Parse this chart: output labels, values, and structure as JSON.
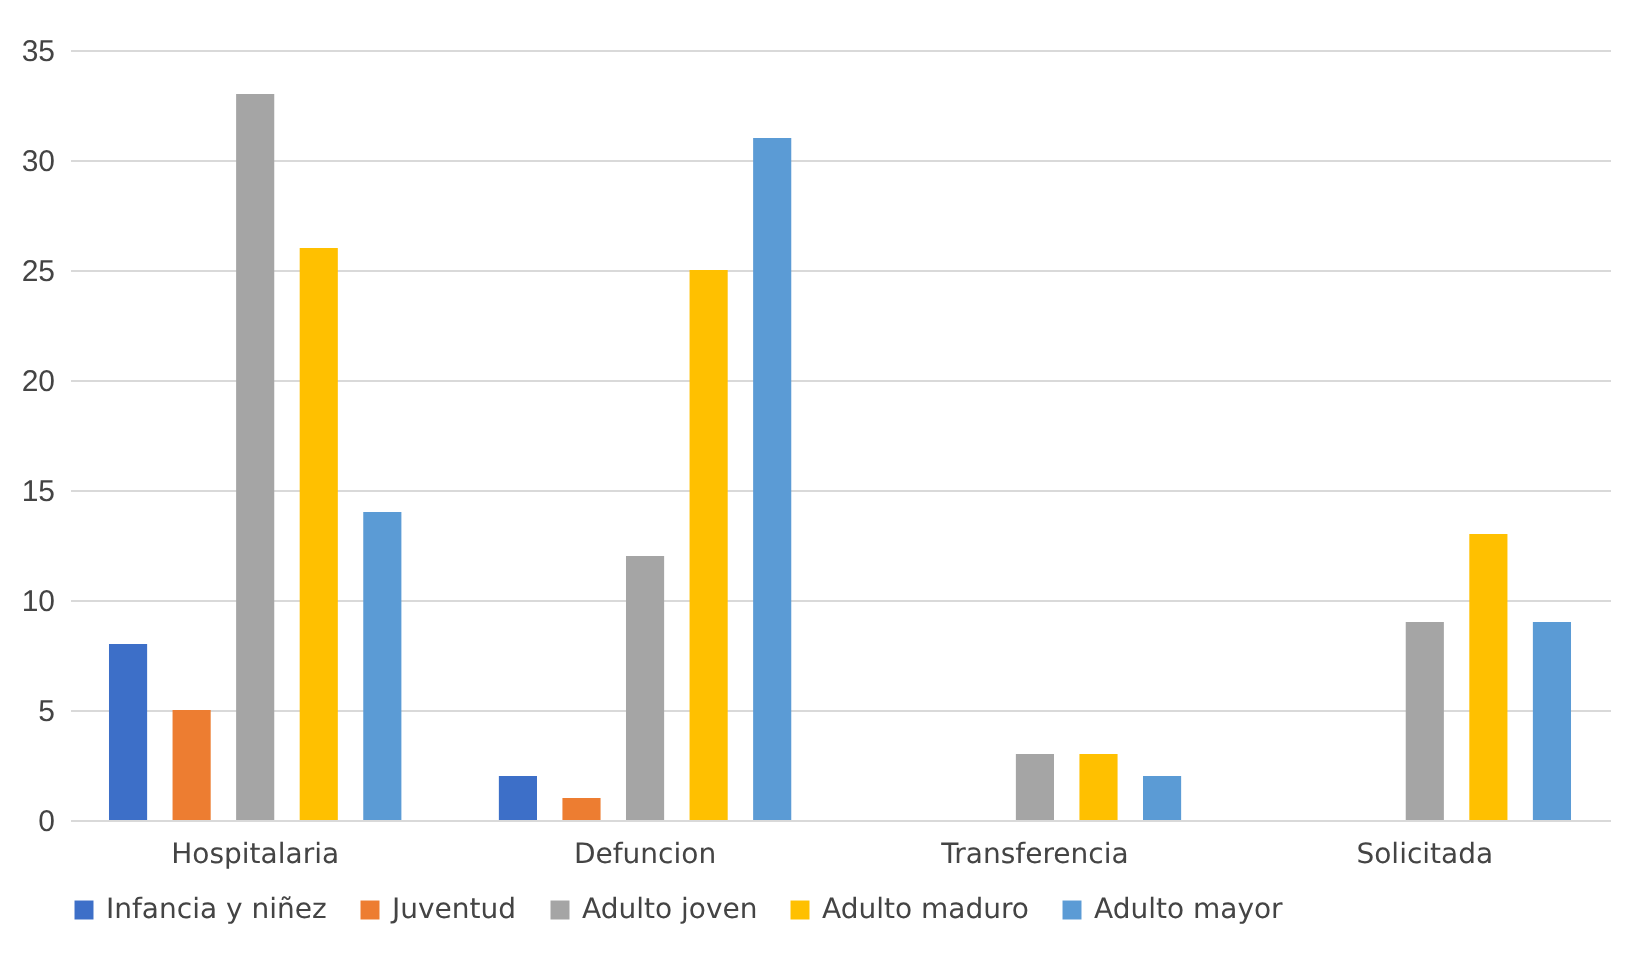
{
  "chart_data": {
    "type": "bar",
    "categories": [
      "Hospitalaria",
      "Defuncion",
      "Transferencia",
      "Solicitada"
    ],
    "series": [
      {
        "name": "Infancia y niñez",
        "color": "#3d6fc8",
        "values": [
          8,
          2,
          0,
          0
        ]
      },
      {
        "name": "Juventud",
        "color": "#ed7d31",
        "values": [
          5,
          1,
          0,
          0
        ]
      },
      {
        "name": "Adulto joven",
        "color": "#a5a5a5",
        "values": [
          33,
          12,
          3,
          9
        ]
      },
      {
        "name": "Adulto maduro",
        "color": "#ffc000",
        "values": [
          26,
          25,
          3,
          13
        ]
      },
      {
        "name": "Adulto mayor",
        "color": "#5b9bd5",
        "values": [
          14,
          31,
          2,
          9
        ]
      }
    ],
    "ylim": [
      0,
      35
    ],
    "yticks": [
      0,
      5,
      10,
      15,
      20,
      25,
      30,
      35
    ],
    "grid": "y",
    "legend": "bottom"
  }
}
